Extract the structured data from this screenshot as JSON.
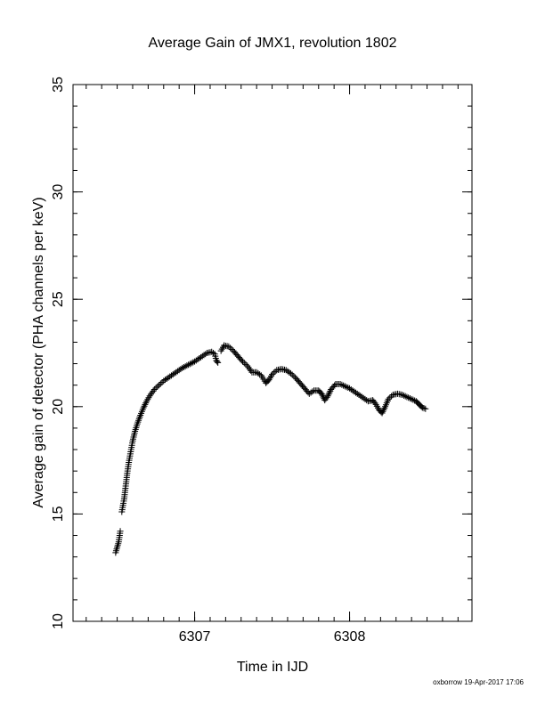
{
  "chart_data": {
    "type": "scatter",
    "title": "Average Gain of JMX1, revolution 1802",
    "xlabel": "Time in IJD",
    "ylabel": "Average gain of detector (PHA channels per keV)",
    "footer": "oxborrow 19-Apr-2017 17:06",
    "xlim": [
      6306.215,
      6308.79
    ],
    "ylim": [
      10,
      35
    ],
    "x_ticks": [
      6307,
      6308
    ],
    "y_ticks": [
      10,
      15,
      20,
      25,
      30,
      35
    ],
    "x_minor_step": 0.1,
    "y_minor_step": 1,
    "marker": "+",
    "color": "#000000",
    "grid": false,
    "series": [
      {
        "segments": [
          [
            [
              6306.49,
              13.2
            ],
            [
              6306.51,
              13.7
            ],
            [
              6306.52,
              14.2
            ]
          ],
          [
            [
              6306.53,
              15.1
            ],
            [
              6306.545,
              15.7
            ],
            [
              6306.555,
              16.3
            ],
            [
              6306.565,
              16.9
            ],
            [
              6306.575,
              17.4
            ],
            [
              6306.585,
              17.8
            ],
            [
              6306.6,
              18.4
            ],
            [
              6306.615,
              18.85
            ],
            [
              6306.63,
              19.2
            ],
            [
              6306.65,
              19.6
            ],
            [
              6306.67,
              19.95
            ],
            [
              6306.69,
              20.25
            ],
            [
              6306.71,
              20.5
            ],
            [
              6306.74,
              20.8
            ],
            [
              6306.77,
              21.0
            ],
            [
              6306.8,
              21.2
            ],
            [
              6306.84,
              21.4
            ],
            [
              6306.88,
              21.6
            ],
            [
              6306.92,
              21.8
            ],
            [
              6306.96,
              21.95
            ],
            [
              6307.0,
              22.1
            ],
            [
              6307.04,
              22.3
            ],
            [
              6307.08,
              22.5
            ],
            [
              6307.11,
              22.55
            ],
            [
              6307.13,
              22.45
            ],
            [
              6307.14,
              22.15
            ],
            [
              6307.15,
              22.05
            ]
          ],
          [
            [
              6307.17,
              22.6
            ],
            [
              6307.19,
              22.85
            ],
            [
              6307.22,
              22.8
            ],
            [
              6307.25,
              22.6
            ],
            [
              6307.28,
              22.35
            ],
            [
              6307.31,
              22.1
            ],
            [
              6307.34,
              21.9
            ],
            [
              6307.37,
              21.6
            ],
            [
              6307.4,
              21.6
            ],
            [
              6307.43,
              21.45
            ],
            [
              6307.46,
              21.1
            ],
            [
              6307.48,
              21.25
            ],
            [
              6307.5,
              21.5
            ],
            [
              6307.53,
              21.7
            ],
            [
              6307.56,
              21.75
            ],
            [
              6307.59,
              21.7
            ],
            [
              6307.62,
              21.55
            ],
            [
              6307.65,
              21.35
            ],
            [
              6307.68,
              21.1
            ],
            [
              6307.71,
              20.85
            ],
            [
              6307.74,
              20.6
            ],
            [
              6307.77,
              20.75
            ],
            [
              6307.8,
              20.75
            ],
            [
              6307.82,
              20.6
            ],
            [
              6307.84,
              20.3
            ],
            [
              6307.86,
              20.5
            ],
            [
              6307.88,
              20.8
            ],
            [
              6307.91,
              21.05
            ],
            [
              6307.94,
              21.05
            ],
            [
              6307.97,
              20.95
            ],
            [
              6308.0,
              20.85
            ],
            [
              6308.03,
              20.7
            ],
            [
              6308.06,
              20.55
            ],
            [
              6308.09,
              20.4
            ],
            [
              6308.12,
              20.25
            ],
            [
              6308.15,
              20.3
            ],
            [
              6308.17,
              20.1
            ],
            [
              6308.19,
              19.85
            ],
            [
              6308.21,
              19.7
            ],
            [
              6308.23,
              20.0
            ],
            [
              6308.25,
              20.35
            ],
            [
              6308.28,
              20.55
            ],
            [
              6308.31,
              20.6
            ],
            [
              6308.34,
              20.55
            ],
            [
              6308.37,
              20.45
            ],
            [
              6308.4,
              20.35
            ],
            [
              6308.43,
              20.25
            ],
            [
              6308.45,
              20.1
            ],
            [
              6308.47,
              19.95
            ],
            [
              6308.49,
              19.9
            ]
          ]
        ]
      }
    ]
  }
}
